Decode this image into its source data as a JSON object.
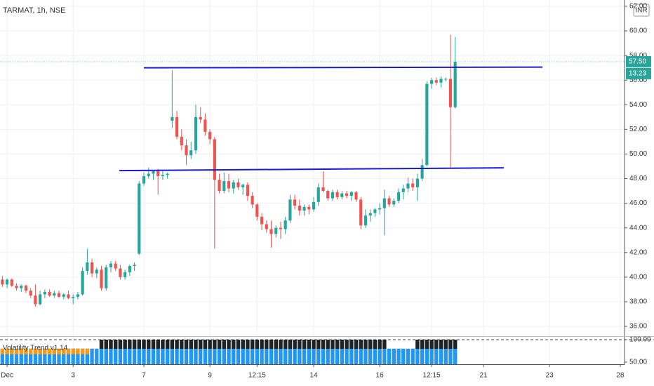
{
  "chart_data": {
    "type": "candlestick",
    "title": "TARMAT, 1h, NSE",
    "currency": "INR",
    "up_color": "#26a69a",
    "down_color": "#ef5350",
    "grid": true,
    "xlim": [
      -0.5,
      131.9
    ],
    "xticks": [
      {
        "value": 1,
        "label": "Dec"
      },
      {
        "value": 15,
        "label": "3"
      },
      {
        "value": 30,
        "label": "7"
      },
      {
        "value": 44,
        "label": "9"
      },
      {
        "value": 54,
        "label": "12:15"
      },
      {
        "value": 66,
        "label": "14"
      },
      {
        "value": 80,
        "label": "16"
      },
      {
        "value": 91,
        "label": "12:15"
      },
      {
        "value": 102,
        "label": "21"
      },
      {
        "value": 116,
        "label": "23"
      },
      {
        "value": 131,
        "label": "28"
      }
    ],
    "ylim": [
      35.26,
      62.51
    ],
    "yticks": [
      {
        "value": 36,
        "label": "36.00"
      },
      {
        "value": 38,
        "label": "38.00"
      },
      {
        "value": 40,
        "label": "40.00"
      },
      {
        "value": 42,
        "label": "42.00"
      },
      {
        "value": 44,
        "label": "44.00"
      },
      {
        "value": 46,
        "label": "46.00"
      },
      {
        "value": 48,
        "label": "48.00"
      },
      {
        "value": 50,
        "label": "50.00"
      },
      {
        "value": 52,
        "label": "52.00"
      },
      {
        "value": 54,
        "label": "54.00"
      },
      {
        "value": 56,
        "label": "56.00"
      },
      {
        "value": 58,
        "label": "58.00"
      },
      {
        "value": 60,
        "label": "60.00"
      },
      {
        "value": 62,
        "label": "62.00"
      }
    ],
    "open": [
      39.8,
      39.4,
      39.8,
      39.3,
      39.1,
      39.3,
      38.9,
      38.5,
      37.8,
      38.6,
      38.8,
      38.5,
      38.7,
      38.4,
      38.6,
      38.3,
      38.4,
      38.6,
      40.5,
      41.2,
      40.3,
      40.6,
      39.1,
      40.8,
      41.1,
      40.7,
      40.0,
      40.4,
      40.9,
      41.9,
      47.6,
      48.2,
      48.4,
      48.6,
      48.2,
      48.3,
      52.7,
      53.0,
      51.4,
      50.7,
      49.9,
      50.3,
      53.0,
      52.8,
      51.8,
      51.2,
      47.9,
      47.0,
      47.8,
      47.2,
      47.7,
      47.3,
      47.5,
      46.6,
      45.9,
      44.9,
      44.3,
      43.9,
      43.5,
      44.0,
      43.9,
      44.6,
      46.3,
      45.8,
      45.4,
      45.7,
      45.5,
      46.1,
      47.3,
      47.0,
      46.4,
      46.9,
      46.5,
      46.8,
      46.6,
      46.9,
      46.3,
      44.2,
      45.0,
      45.2,
      45.5,
      45.6,
      46.4,
      45.9,
      46.2,
      46.9,
      47.2,
      47.6,
      47.3,
      48.0,
      49.1,
      55.7,
      56.0,
      55.8,
      56.1,
      56.1,
      53.8
    ],
    "high": [
      40.1,
      39.9,
      39.9,
      39.5,
      39.4,
      39.4,
      39.1,
      39.4,
      38.9,
      39.0,
      39.0,
      38.9,
      38.9,
      38.7,
      38.9,
      38.6,
      38.8,
      40.8,
      42.3,
      41.5,
      40.8,
      40.9,
      41.0,
      41.3,
      41.3,
      41.0,
      40.6,
      41.0,
      41.2,
      47.8,
      48.5,
      48.9,
      48.6,
      48.8,
      48.6,
      48.5,
      56.8,
      53.5,
      52.0,
      51.2,
      51.0,
      54.0,
      53.8,
      53.3,
      52.0,
      51.4,
      48.4,
      48.5,
      48.4,
      47.9,
      48.0,
      47.6,
      47.7,
      46.9,
      46.0,
      45.2,
      44.6,
      44.6,
      44.2,
      44.5,
      44.9,
      46.7,
      46.7,
      46.3,
      45.9,
      45.9,
      46.5,
      47.6,
      48.6,
      47.1,
      47.1,
      47.1,
      47.0,
      47.0,
      47.0,
      47.0,
      46.5,
      45.5,
      45.5,
      45.6,
      46.0,
      47.1,
      46.6,
      46.4,
      47.2,
      47.5,
      48.1,
      48.0,
      48.4,
      49.6,
      55.9,
      56.2,
      56.2,
      56.3,
      56.2,
      59.7,
      59.5
    ],
    "low": [
      39.2,
      39.1,
      39.2,
      38.9,
      38.8,
      38.7,
      38.3,
      37.6,
      37.7,
      38.3,
      38.4,
      38.3,
      38.3,
      38.2,
      38.2,
      37.8,
      38.2,
      38.5,
      40.2,
      40.0,
      39.9,
      38.9,
      38.9,
      40.4,
      40.5,
      39.8,
      39.8,
      40.1,
      40.5,
      41.8,
      47.4,
      48.0,
      47.9,
      46.7,
      47.9,
      48.0,
      52.1,
      51.2,
      50.3,
      49.1,
      49.6,
      50.0,
      52.5,
      51.5,
      50.8,
      42.3,
      46.8,
      46.8,
      46.9,
      46.8,
      47.1,
      46.7,
      46.2,
      45.6,
      44.6,
      43.8,
      43.6,
      42.4,
      43.2,
      43.1,
      43.5,
      44.4,
      45.5,
      45.0,
      45.0,
      45.1,
      45.3,
      45.8,
      46.9,
      46.2,
      46.2,
      46.3,
      46.3,
      46.4,
      46.2,
      46.1,
      43.9,
      44.0,
      44.5,
      44.9,
      45.1,
      43.4,
      45.7,
      45.7,
      46.0,
      46.3,
      46.9,
      47.0,
      46.2,
      47.8,
      49.0,
      55.3,
      55.6,
      55.4,
      55.9,
      48.9,
      53.7
    ],
    "close": [
      39.4,
      39.8,
      39.3,
      39.1,
      39.3,
      38.9,
      38.5,
      37.8,
      38.6,
      38.8,
      38.5,
      38.7,
      38.4,
      38.6,
      38.3,
      38.4,
      38.6,
      40.5,
      41.2,
      40.3,
      40.6,
      39.1,
      40.8,
      41.1,
      40.7,
      40.0,
      40.4,
      40.9,
      41.0,
      47.6,
      48.2,
      48.4,
      48.6,
      48.2,
      48.3,
      48.4,
      53.0,
      51.4,
      50.7,
      49.9,
      50.3,
      53.0,
      52.8,
      51.8,
      51.2,
      47.9,
      47.0,
      47.8,
      47.2,
      47.7,
      47.3,
      47.5,
      46.6,
      45.9,
      44.9,
      44.3,
      43.9,
      43.5,
      44.0,
      43.9,
      44.6,
      46.3,
      45.8,
      45.4,
      45.7,
      45.5,
      46.1,
      47.3,
      47.0,
      46.4,
      46.9,
      46.5,
      46.8,
      46.6,
      46.9,
      46.3,
      44.2,
      45.0,
      45.2,
      45.5,
      45.6,
      46.4,
      45.9,
      46.2,
      46.9,
      47.2,
      47.6,
      47.3,
      48.0,
      49.1,
      55.7,
      56.0,
      55.8,
      56.1,
      56.1,
      53.8,
      57.5
    ],
    "lines": [
      {
        "color": "#1a1ad6",
        "x": [
          30,
          114.5
        ],
        "y": [
          57.0,
          57.06
        ]
      },
      {
        "color": "#1a1ad6",
        "x": [
          24.8,
          106.3
        ],
        "y": [
          48.65,
          48.88
        ]
      }
    ],
    "last_price": {
      "value": 57.5,
      "label": "57.50"
    },
    "countdown": "13:23",
    "indicator": {
      "title": "Volatility Trend v1.14",
      "base_color": "#2196f3",
      "ylim": [
        45.3,
        106.25
      ],
      "yticks": [
        {
          "value": 50,
          "label": "50.00"
        },
        {
          "value": 100,
          "label": "100.00"
        }
      ],
      "values": [
        80,
        80,
        80,
        80,
        80,
        80,
        80,
        80,
        80,
        80,
        80,
        80,
        80,
        80,
        80,
        80,
        80,
        80,
        80,
        80,
        80,
        100,
        100,
        100,
        100,
        100,
        100,
        100,
        100,
        100,
        100,
        100,
        100,
        100,
        100,
        100,
        100,
        100,
        100,
        100,
        100,
        100,
        100,
        100,
        100,
        100,
        100,
        100,
        100,
        100,
        100,
        100,
        100,
        100,
        100,
        100,
        100,
        100,
        100,
        100,
        100,
        100,
        100,
        100,
        100,
        100,
        100,
        100,
        100,
        100,
        100,
        100,
        100,
        100,
        100,
        100,
        100,
        100,
        100,
        100,
        100,
        100,
        80,
        80,
        80,
        80,
        80,
        80,
        100,
        100,
        100,
        100,
        100,
        100,
        100,
        100,
        100
      ],
      "colors": [
        "#f59b17",
        "#f59b17",
        "#f59b17",
        "#f59b17",
        "#f59b17",
        "#f59b17",
        "#f59b17",
        "#f59b17",
        "#f59b17",
        "#f59b17",
        "#f59b17",
        "#f59b17",
        "#f59b17",
        "#f59b17",
        "#f59b17",
        "#f59b17",
        "#f59b17",
        "#f59b17",
        "#f59b17",
        null,
        null,
        "#222222",
        "#222222",
        "#222222",
        "#222222",
        "#222222",
        "#222222",
        "#222222",
        "#222222",
        "#222222",
        "#222222",
        "#222222",
        "#222222",
        "#222222",
        "#222222",
        "#222222",
        "#222222",
        "#222222",
        "#222222",
        "#222222",
        "#222222",
        "#222222",
        "#222222",
        "#222222",
        "#222222",
        "#222222",
        "#222222",
        "#222222",
        "#222222",
        "#222222",
        "#222222",
        "#222222",
        "#222222",
        "#222222",
        "#222222",
        "#222222",
        "#222222",
        "#222222",
        "#222222",
        "#222222",
        "#222222",
        "#222222",
        "#222222",
        "#222222",
        "#222222",
        "#222222",
        "#222222",
        "#222222",
        "#222222",
        "#222222",
        "#222222",
        "#222222",
        "#222222",
        "#222222",
        "#222222",
        "#222222",
        "#222222",
        "#222222",
        "#222222",
        "#222222",
        "#222222",
        "#222222",
        null,
        null,
        null,
        null,
        null,
        null,
        "#222222",
        "#222222",
        "#222222",
        "#222222",
        "#222222",
        "#222222",
        "#222222",
        "#222222",
        "#222222"
      ]
    }
  }
}
